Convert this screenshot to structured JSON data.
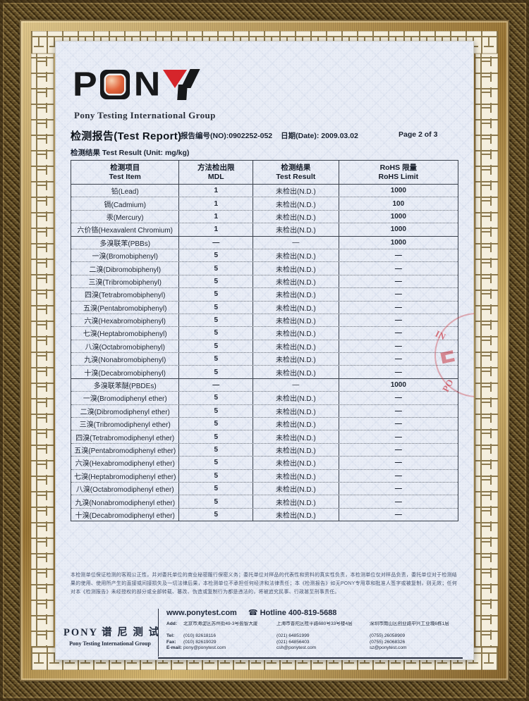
{
  "brand": {
    "letters": [
      "P",
      "N"
    ],
    "group_name": "Pony Testing International Group"
  },
  "header": {
    "title": "检测报告(Test Report)",
    "report_no": "报告编号(NO):0902252-052",
    "date": "日期(Date): 2009.03.02",
    "page": "Page 2 of 3"
  },
  "subtitle": "检测结果 Test Result (Unit: mg/kg)",
  "table": {
    "headers": [
      {
        "zh": "检测项目",
        "en": "Test Item"
      },
      {
        "zh": "方法检出限",
        "en": "MDL"
      },
      {
        "zh": "检测结果",
        "en": "Test Result"
      },
      {
        "zh": "RoHS 限量",
        "en": "RoHS Limit"
      }
    ],
    "rows": [
      {
        "item": "铅(Lead)",
        "mdl": "1",
        "result": "未检出(N.D.)",
        "limit": "1000",
        "group": false
      },
      {
        "item": "镉(Cadmium)",
        "mdl": "1",
        "result": "未检出(N.D.)",
        "limit": "100",
        "group": false
      },
      {
        "item": "汞(Mercury)",
        "mdl": "1",
        "result": "未检出(N.D.)",
        "limit": "1000",
        "group": false
      },
      {
        "item": "六价铬(Hexavalent Chromium)",
        "mdl": "1",
        "result": "未检出(N.D.)",
        "limit": "1000",
        "group": false
      },
      {
        "item": "多溴联苯(PBBs)",
        "mdl": "—",
        "result": "—",
        "limit": "1000",
        "group": true
      },
      {
        "item": "一溴(Bromobiphenyl)",
        "mdl": "5",
        "result": "未检出(N.D.)",
        "limit": "—",
        "group": false
      },
      {
        "item": "二溴(Dibromobiphenyl)",
        "mdl": "5",
        "result": "未检出(N.D.)",
        "limit": "—",
        "group": false
      },
      {
        "item": "三溴(Tribromobiphenyl)",
        "mdl": "5",
        "result": "未检出(N.D.)",
        "limit": "—",
        "group": false
      },
      {
        "item": "四溴(Tetrabromobiphenyl)",
        "mdl": "5",
        "result": "未检出(N.D.)",
        "limit": "—",
        "group": false
      },
      {
        "item": "五溴(Pentabromobiphenyl)",
        "mdl": "5",
        "result": "未检出(N.D.)",
        "limit": "—",
        "group": false
      },
      {
        "item": "六溴(Hexabromobiphenyl)",
        "mdl": "5",
        "result": "未检出(N.D.)",
        "limit": "—",
        "group": false
      },
      {
        "item": "七溴(Heptabromobiphenyl)",
        "mdl": "5",
        "result": "未检出(N.D.)",
        "limit": "—",
        "group": false
      },
      {
        "item": "八溴(Octabromobiphenyl)",
        "mdl": "5",
        "result": "未检出(N.D.)",
        "limit": "—",
        "group": false
      },
      {
        "item": "九溴(Nonabromobiphenyl)",
        "mdl": "5",
        "result": "未检出(N.D.)",
        "limit": "—",
        "group": false
      },
      {
        "item": "十溴(Decabromobiphenyl)",
        "mdl": "5",
        "result": "未检出(N.D.)",
        "limit": "—",
        "group": false
      },
      {
        "item": "多溴联苯醚(PBDEs)",
        "mdl": "—",
        "result": "—",
        "limit": "1000",
        "group": true
      },
      {
        "item": "一溴(Bromodiphenyl ether)",
        "mdl": "5",
        "result": "未检出(N.D.)",
        "limit": "—",
        "group": false
      },
      {
        "item": "二溴(Dibromodiphenyl ether)",
        "mdl": "5",
        "result": "未检出(N.D.)",
        "limit": "—",
        "group": false
      },
      {
        "item": "三溴(Tribromodiphenyl ether)",
        "mdl": "5",
        "result": "未检出(N.D.)",
        "limit": "—",
        "group": false
      },
      {
        "item": "四溴(Tetrabromodiphenyl ether)",
        "mdl": "5",
        "result": "未检出(N.D.)",
        "limit": "—",
        "group": false
      },
      {
        "item": "五溴(Pentabromodiphenyl ether)",
        "mdl": "5",
        "result": "未检出(N.D.)",
        "limit": "—",
        "group": false
      },
      {
        "item": "六溴(Hexabromodiphenyl ether)",
        "mdl": "5",
        "result": "未检出(N.D.)",
        "limit": "—",
        "group": false
      },
      {
        "item": "七溴(Heptabromodiphenyl ether)",
        "mdl": "5",
        "result": "未检出(N.D.)",
        "limit": "—",
        "group": false
      },
      {
        "item": "八溴(Octabromodiphenyl ether)",
        "mdl": "5",
        "result": "未检出(N.D.)",
        "limit": "—",
        "group": false
      },
      {
        "item": "九溴(Nonabromodiphenyl ether)",
        "mdl": "5",
        "result": "未检出(N.D.)",
        "limit": "—",
        "group": false
      },
      {
        "item": "十溴(Decabromodiphenyl ether)",
        "mdl": "5",
        "result": "未检出(N.D.)",
        "limit": "—",
        "group": false
      }
    ]
  },
  "disclaimer": "本检测单位保证检测的客观公正性，并对委托单位的商业秘密履行保密义务；委托单位对样品的代表性和资料的真实性负责，本检测单位仅对样品负责，委托单位对于检测结果的使用、使用所产生的直接或间接损失及一切法律后果，本检测单位不承担任何经济和法律责任；本《检测报告》如无PONY专用章和批准人签字或被复制，则无效；任何对本《检测报告》未经授权的部分或全部转载、篡改、伪造或复制行为都是违法的，将被追究民事、行政甚至刑事责任。",
  "footer": {
    "logo_zh": "PONY 谱 尼 测 试",
    "logo_en": "Pony Testing International Group",
    "website": "www.ponytest.com",
    "phone_icon": "☎",
    "hotline": "Hotline 400-819-5688",
    "labels": {
      "add": "Add:",
      "tel": "Tel:",
      "fax": "Fax:",
      "email": "E-mail:"
    },
    "offices": [
      {
        "address": "北京市海淀区苏州街49-3号盈智大厦",
        "tel": "(010) 82618116",
        "fax": "(010) 82619029",
        "email": "pony@ponytest.com"
      },
      {
        "address": "上海市普陀区桂平路680号33号楼4层",
        "tel": "(021) 64851999",
        "fax": "(021) 64856403",
        "email": "csh@ponytest.com"
      },
      {
        "address": "深圳市南山区创业路中兴工业城6栋1层",
        "tel": "(0755) 26058909",
        "fax": "(0755) 26068326",
        "email": "sz@ponytest.com"
      }
    ]
  },
  "stamp": {
    "fragments": [
      "IN",
      "PO"
    ]
  }
}
